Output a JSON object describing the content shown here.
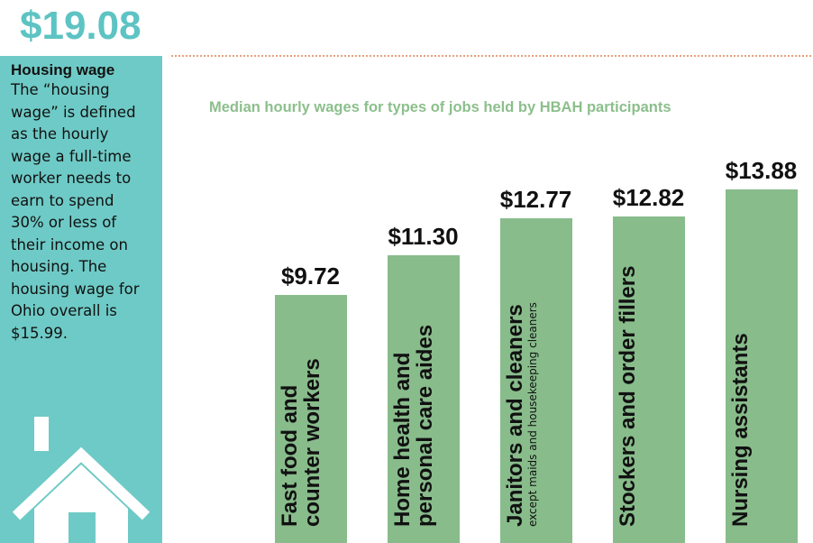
{
  "sidebar": {
    "amount": "$19.08",
    "heading": "Housing wage",
    "text": "The “housing wage” is defined as the hourly wage a full-time worker needs to earn to spend 30% or less of their income on housing. The housing wage for Ohio overall is $15.99."
  },
  "chart_data": {
    "type": "bar",
    "title": "Median hourly wages for types of jobs held by HBAH participants",
    "categories": [
      "Fast food and counter workers",
      "Home health and personal care aides",
      "Janitors and cleaners",
      "Stockers and order fillers",
      "Nursing assistants"
    ],
    "values": [
      9.72,
      11.3,
      12.77,
      12.82,
      13.88
    ],
    "value_labels": [
      "$9.72",
      "$11.30",
      "$12.77",
      "$12.82",
      "$13.88"
    ],
    "annotations": [
      {
        "category": 2,
        "text": "except maids and housekeeping cleaners"
      }
    ],
    "color": "#88bc8b",
    "ylim": [
      0,
      14
    ]
  }
}
